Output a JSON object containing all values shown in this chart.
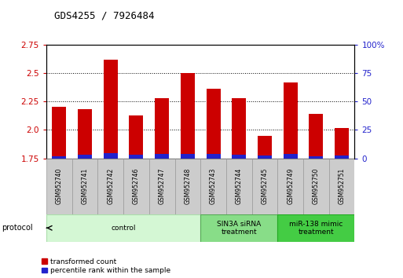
{
  "title": "GDS4255 / 7926484",
  "samples": [
    "GSM952740",
    "GSM952741",
    "GSM952742",
    "GSM952746",
    "GSM952747",
    "GSM952748",
    "GSM952743",
    "GSM952744",
    "GSM952745",
    "GSM952749",
    "GSM952750",
    "GSM952751"
  ],
  "red_values": [
    2.2,
    2.18,
    2.62,
    2.13,
    2.28,
    2.5,
    2.36,
    2.28,
    1.95,
    2.42,
    2.14,
    2.02
  ],
  "blue_values": [
    0.018,
    0.03,
    0.048,
    0.03,
    0.038,
    0.04,
    0.038,
    0.03,
    0.025,
    0.04,
    0.018,
    0.025
  ],
  "ymin": 1.75,
  "ymax": 2.75,
  "yticks": [
    1.75,
    2.0,
    2.25,
    2.5,
    2.75
  ],
  "y2ticks": [
    0,
    25,
    50,
    75,
    100
  ],
  "y2labels": [
    "0",
    "25",
    "50",
    "75",
    "100%"
  ],
  "bar_color": "#cc0000",
  "blue_color": "#2222cc",
  "protocol_groups": [
    {
      "label": "control",
      "start": 0,
      "end": 5,
      "color": "#d4f7d4",
      "border": "#aaddaa"
    },
    {
      "label": "SIN3A siRNA\ntreatment",
      "start": 6,
      "end": 8,
      "color": "#88dd88",
      "border": "#55aa55"
    },
    {
      "label": "miR-138 mimic\ntreatment",
      "start": 9,
      "end": 11,
      "color": "#44cc44",
      "border": "#22aa22"
    }
  ],
  "legend_items": [
    {
      "label": "transformed count",
      "color": "#cc0000"
    },
    {
      "label": "percentile rank within the sample",
      "color": "#2222cc"
    }
  ],
  "protocol_label": "protocol",
  "tick_color_left": "#cc0000",
  "tick_color_right": "#2222cc",
  "bar_width": 0.55
}
